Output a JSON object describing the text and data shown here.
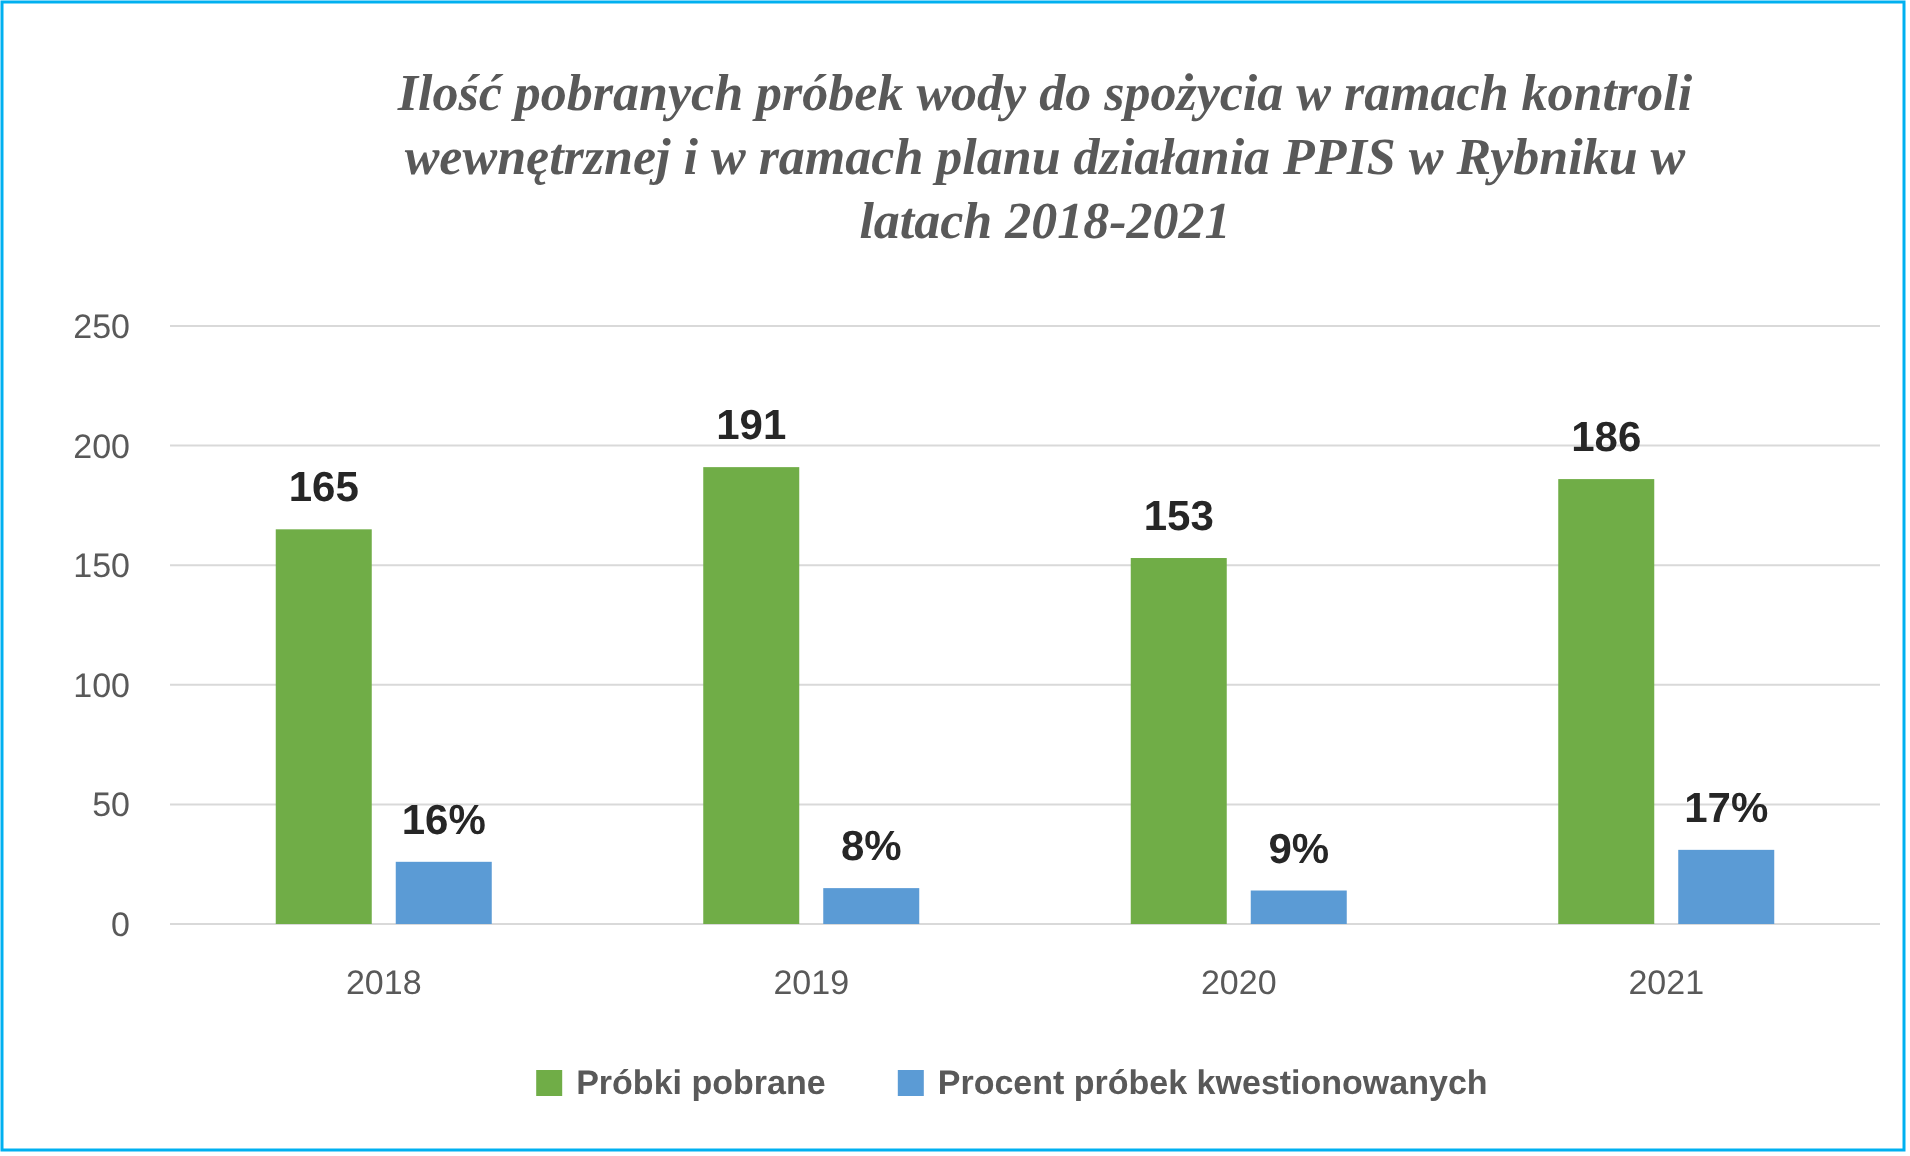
{
  "chart_data": {
    "type": "bar",
    "title": "Ilość pobranych próbek wody do spożycia w ramach kontroli wewnętrznej i w ramach planu działania PPIS  w Rybniku w latach 2018-2021",
    "categories": [
      "2018",
      "2019",
      "2020",
      "2021"
    ],
    "series": [
      {
        "name": "Próbki pobrane",
        "color": "#70ad47",
        "values": [
          165,
          191,
          153,
          186
        ],
        "value_labels": [
          "165",
          "191",
          "153",
          "186"
        ]
      },
      {
        "name": "Procent próbek kwestionowanych",
        "color": "#5b9bd5",
        "values": [
          26,
          15,
          14,
          31
        ]
      }
    ],
    "annotations": [
      "16%",
      "8%",
      "9%",
      "17%"
    ],
    "ylim": [
      0,
      250
    ],
    "yticks": [
      0,
      50,
      100,
      150,
      200,
      250
    ],
    "grid": "y",
    "legend": "bottom"
  }
}
